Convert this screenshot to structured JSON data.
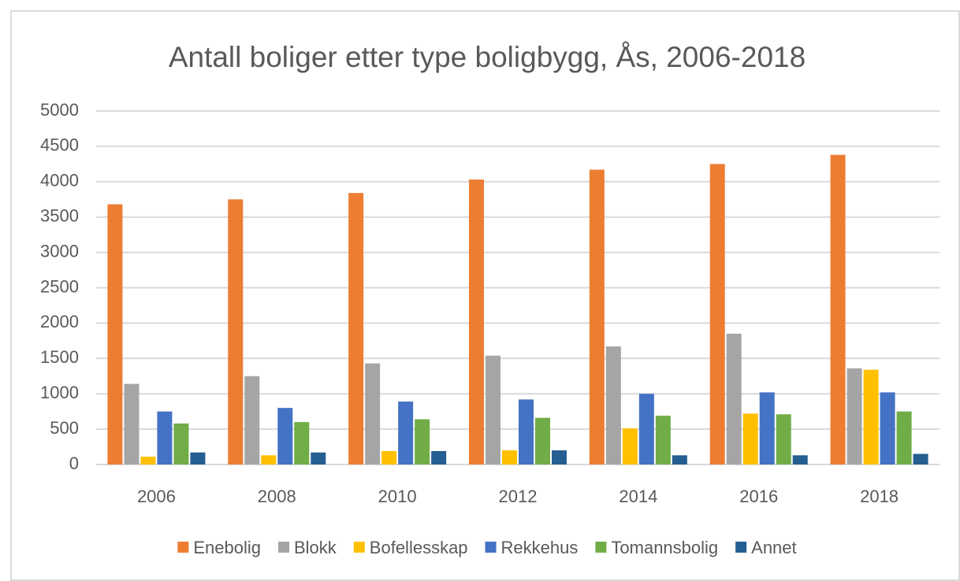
{
  "chart_data": {
    "type": "bar",
    "title": "Antall boliger etter type boligbygg, Ås, 2006-2018",
    "categories": [
      "2006",
      "2008",
      "2010",
      "2012",
      "2014",
      "2016",
      "2018"
    ],
    "series": [
      {
        "name": "Enebolig",
        "color": "#ed7d31",
        "values": [
          3680,
          3750,
          3840,
          4030,
          4170,
          4250,
          4380
        ]
      },
      {
        "name": "Blokk",
        "color": "#a5a5a5",
        "values": [
          1140,
          1250,
          1430,
          1540,
          1670,
          1850,
          1360
        ]
      },
      {
        "name": "Bofellesskap",
        "color": "#ffc000",
        "values": [
          110,
          130,
          190,
          200,
          510,
          720,
          1340
        ]
      },
      {
        "name": "Rekkehus",
        "color": "#4472c4",
        "values": [
          750,
          800,
          890,
          920,
          1000,
          1020,
          1020
        ]
      },
      {
        "name": "Tomannsbolig",
        "color": "#70ad47",
        "values": [
          580,
          600,
          640,
          660,
          690,
          710,
          750
        ]
      },
      {
        "name": "Annet",
        "color": "#255e91",
        "values": [
          170,
          170,
          190,
          200,
          130,
          130,
          150
        ]
      }
    ],
    "ylim": [
      0,
      5000
    ],
    "yticks": [
      0,
      500,
      1000,
      1500,
      2000,
      2500,
      3000,
      3500,
      4000,
      4500,
      5000
    ],
    "grid": true,
    "legend": "bottom"
  }
}
